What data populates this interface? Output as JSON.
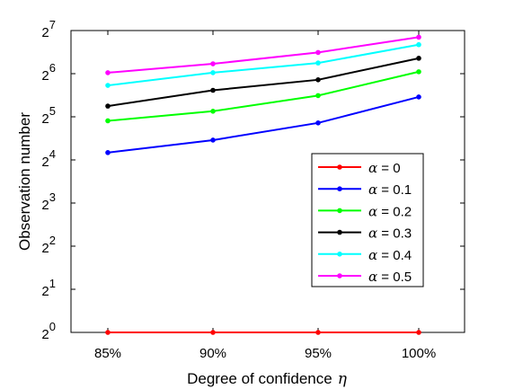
{
  "chart_data": {
    "type": "line",
    "xlabel": "Degree of confidence",
    "xlabel_symbol": "η",
    "ylabel": "Observation number",
    "categories": [
      "85%",
      "90%",
      "95%",
      "100%"
    ],
    "y_scale": "log2",
    "ylim": [
      1,
      128
    ],
    "y_ticks": [
      {
        "base": "2",
        "exp": "0"
      },
      {
        "base": "2",
        "exp": "1"
      },
      {
        "base": "2",
        "exp": "2"
      },
      {
        "base": "2",
        "exp": "3"
      },
      {
        "base": "2",
        "exp": "4"
      },
      {
        "base": "2",
        "exp": "5"
      },
      {
        "base": "2",
        "exp": "6"
      },
      {
        "base": "2",
        "exp": "7"
      }
    ],
    "grid": false,
    "legend_position": "lower-right",
    "series": [
      {
        "name": "α = 0",
        "symbol": "α",
        "suffix": " = 0",
        "color": "#ff0000",
        "values": [
          1,
          1,
          1,
          1
        ]
      },
      {
        "name": "α = 0.1",
        "symbol": "α",
        "suffix": " = 0.1",
        "color": "#0000ff",
        "values": [
          18,
          22,
          29,
          44
        ]
      },
      {
        "name": "α = 0.2",
        "symbol": "α",
        "suffix": " = 0.2",
        "color": "#00ff00",
        "values": [
          30,
          35,
          45,
          66
        ]
      },
      {
        "name": "α = 0.3",
        "symbol": "α",
        "suffix": " = 0.3",
        "color": "#000000",
        "values": [
          38,
          49,
          58,
          82
        ]
      },
      {
        "name": "α = 0.4",
        "symbol": "α",
        "suffix": " = 0.4",
        "color": "#00ffff",
        "values": [
          53,
          65,
          76,
          102
        ]
      },
      {
        "name": "α = 0.5",
        "symbol": "α",
        "suffix": " = 0.5",
        "color": "#ff00ff",
        "values": [
          65,
          75,
          90,
          115
        ]
      }
    ]
  }
}
